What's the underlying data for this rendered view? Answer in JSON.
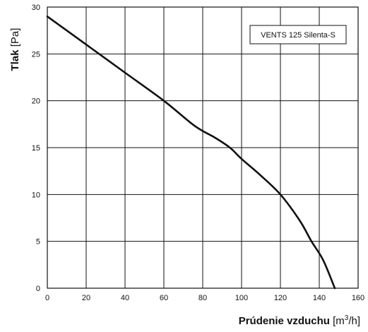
{
  "chart_data": {
    "type": "line",
    "title": "",
    "xlabel": {
      "bold": "Prúdenie vzduchu",
      "unit_open": " [m",
      "unit_sup": "3",
      "unit_close": "/h]"
    },
    "ylabel": {
      "bold": "Tlak",
      "unit": " [Pa]"
    },
    "xlim": [
      0,
      160
    ],
    "ylim": [
      0,
      30
    ],
    "x_ticks": [
      0,
      20,
      40,
      60,
      80,
      100,
      120,
      140,
      160
    ],
    "y_ticks": [
      0,
      5,
      10,
      15,
      20,
      25,
      30
    ],
    "grid": true,
    "legend_placement": "top-right",
    "series": [
      {
        "name": "VENTS 125 Silenta-S",
        "color": "#111111",
        "x": [
          0,
          20,
          40,
          60,
          76,
          86,
          94,
          100,
          110,
          120,
          130,
          136,
          142,
          148
        ],
        "y": [
          29,
          26,
          23,
          20,
          17.3,
          16.1,
          15,
          13.8,
          12,
          10,
          7.2,
          5,
          3,
          0
        ]
      }
    ]
  }
}
